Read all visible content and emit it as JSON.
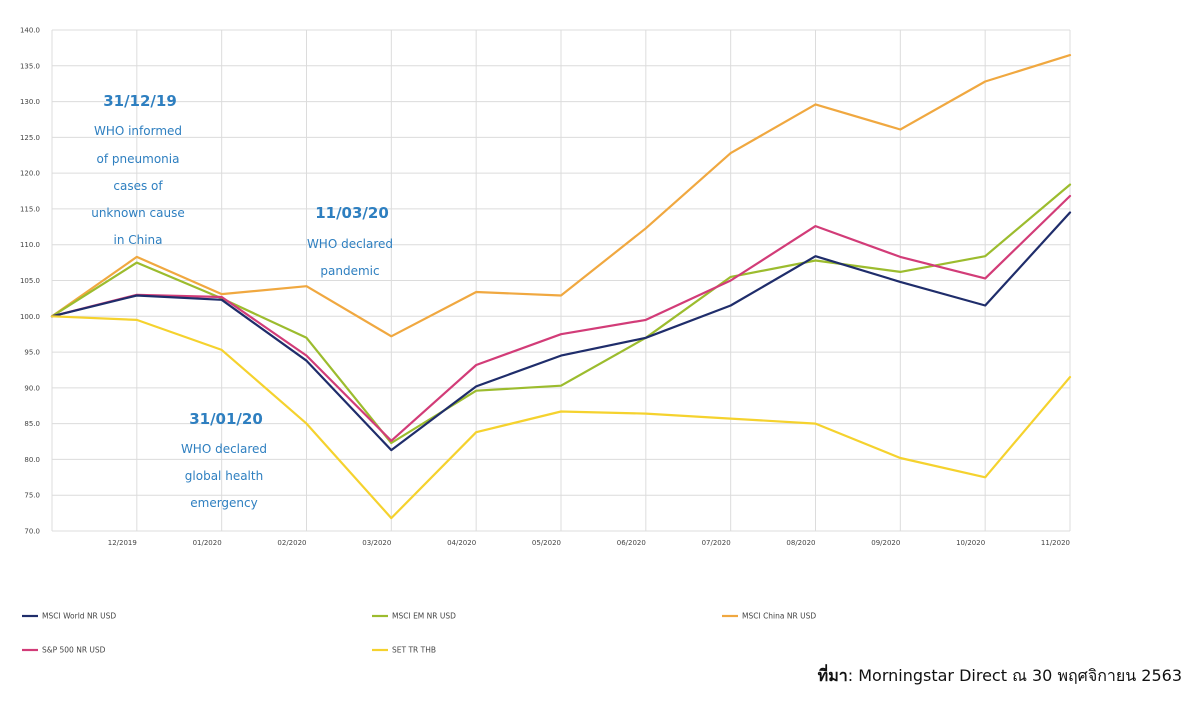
{
  "chart_data": {
    "type": "line",
    "categories": [
      "",
      "12/2019",
      "01/2020",
      "02/2020",
      "03/2020",
      "04/2020",
      "05/2020",
      "06/2020",
      "07/2020",
      "08/2020",
      "09/2020",
      "10/2020",
      "11/2020"
    ],
    "ylim": [
      70,
      140
    ],
    "yticks": [
      70.0,
      75.0,
      80.0,
      85.0,
      90.0,
      95.0,
      100.0,
      105.0,
      110.0,
      115.0,
      120.0,
      125.0,
      130.0,
      135.0,
      140.0
    ],
    "ytick_labels": [
      "70.0",
      "75.0",
      "80.0",
      "85.0",
      "90.0",
      "95.0",
      "100.0",
      "105.0",
      "110.0",
      "115.0",
      "120.0",
      "125.0",
      "130.0",
      "135.0",
      "140.0"
    ],
    "series": [
      {
        "name": "MSCI World NR USD",
        "color": "#1f2d6b",
        "values": [
          100,
          102.9,
          102.3,
          93.8,
          81.3,
          90.2,
          94.5,
          97.0,
          101.5,
          108.4,
          104.8,
          101.5,
          114.5
        ]
      },
      {
        "name": "MSCI EM NR USD",
        "color": "#9cbc2e",
        "values": [
          100,
          107.5,
          102.5,
          97.0,
          82.3,
          89.6,
          90.3,
          97.0,
          105.5,
          107.8,
          106.2,
          108.4,
          118.4
        ]
      },
      {
        "name": "MSCI China NR USD",
        "color": "#f0a840",
        "values": [
          100,
          108.3,
          103.1,
          104.2,
          97.2,
          103.4,
          102.9,
          112.3,
          122.8,
          129.6,
          126.1,
          132.8,
          136.5
        ]
      },
      {
        "name": "S&P 500 NR USD",
        "color": "#d23c78",
        "values": [
          100,
          103.0,
          102.7,
          94.5,
          82.6,
          93.2,
          97.5,
          99.5,
          105.0,
          112.6,
          108.3,
          105.3,
          116.8
        ]
      },
      {
        "name": "SET TR THB",
        "color": "#f5d22e",
        "values": [
          100,
          99.5,
          95.3,
          85.0,
          71.8,
          83.8,
          86.7,
          86.4,
          85.7,
          85.0,
          80.2,
          77.5,
          91.5
        ]
      }
    ],
    "annotations": [
      {
        "date": "31/12/19",
        "lines": [
          "WHO informed",
          "of pneumonia",
          "cases of",
          "unknown cause",
          "in China"
        ]
      },
      {
        "date": "11/03/20",
        "lines": [
          "WHO declared",
          "pandemic"
        ]
      },
      {
        "date": "31/01/20",
        "lines": [
          "WHO declared",
          "global health",
          "emergency"
        ]
      }
    ]
  },
  "source": {
    "label": "ที่มา",
    "text": ": Morningstar Direct ณ 30 พฤศจิกายน 2563"
  }
}
